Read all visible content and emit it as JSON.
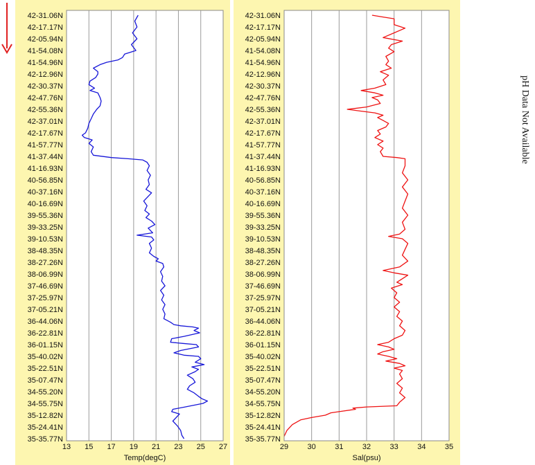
{
  "colors": {
    "panel_bg": "#fdf6b0",
    "plot_bg": "#ffffff",
    "grid": "#9a9a9a",
    "temp_line": "#1515d8",
    "sal_line": "#ee1111",
    "arrow": "#e02020"
  },
  "icons": {
    "direction": "arrow-down-icon"
  },
  "side_note": "pH Data Not Available",
  "chart_data": [
    {
      "type": "line",
      "orientation": "vertical-profile",
      "xlabel": "Temp(degC)",
      "ylabel": "",
      "xlim": [
        13,
        27
      ],
      "xticks": [
        13,
        15,
        17,
        19,
        21,
        23,
        25,
        27
      ],
      "grid": true,
      "y_tick_labels": [
        "42-31.06N",
        "42-17.17N",
        "42-05.94N",
        "41-54.08N",
        "41-54.96N",
        "42-12.96N",
        "42-30.37N",
        "42-47.76N",
        "42-55.36N",
        "42-37.01N",
        "42-17.67N",
        "41-57.77N",
        "41-37.44N",
        "41-16.93N",
        "40-56.85N",
        "40-37.16N",
        "40-16.69N",
        "39-55.36N",
        "39-33.25N",
        "39-10.53N",
        "38-48.35N",
        "38-27.26N",
        "38-06.99N",
        "37-46.69N",
        "37-25.97N",
        "37-05.21N",
        "36-44.06N",
        "36-22.81N",
        "36-01.15N",
        "35-40.02N",
        "35-22.51N",
        "35-07.47N",
        "34-55.20N",
        "34-55.75N",
        "35-12.82N",
        "35-24.41N",
        "35-35.77N"
      ],
      "series": [
        {
          "color": "#1515d8",
          "points": [
            [
              19.4,
              0
            ],
            [
              19.1,
              0.5
            ],
            [
              19.3,
              1
            ],
            [
              18.9,
              1.5
            ],
            [
              19.3,
              2
            ],
            [
              18.8,
              2.5
            ],
            [
              19.2,
              3
            ],
            [
              18.2,
              3.3
            ],
            [
              18.0,
              3.6
            ],
            [
              17.6,
              3.8
            ],
            [
              16.6,
              4
            ],
            [
              16.0,
              4.2
            ],
            [
              15.4,
              4.5
            ],
            [
              15.8,
              4.8
            ],
            [
              15.8,
              5
            ],
            [
              15.6,
              5.3
            ],
            [
              15.1,
              5.6
            ],
            [
              15.0,
              5.9
            ],
            [
              15.5,
              6.2
            ],
            [
              15.1,
              6.4
            ],
            [
              15.8,
              6.6
            ],
            [
              16.0,
              7
            ],
            [
              16.1,
              7.3
            ],
            [
              16.0,
              7.7
            ],
            [
              15.7,
              8
            ],
            [
              15.4,
              8.4
            ],
            [
              15.2,
              8.8
            ],
            [
              15.0,
              9.2
            ],
            [
              14.9,
              9.6
            ],
            [
              14.7,
              10
            ],
            [
              14.4,
              10.2
            ],
            [
              14.6,
              10.4
            ],
            [
              15.3,
              10.6
            ],
            [
              15.0,
              10.9
            ],
            [
              15.4,
              11.2
            ],
            [
              15.2,
              11.6
            ],
            [
              15.4,
              11.9
            ],
            [
              17.0,
              12.1
            ],
            [
              18.5,
              12.2
            ],
            [
              19.8,
              12.3
            ],
            [
              20.2,
              12.5
            ],
            [
              20.4,
              12.8
            ],
            [
              20.2,
              13.2
            ],
            [
              20.5,
              13.6
            ],
            [
              20.3,
              14.0
            ],
            [
              20.4,
              14.4
            ],
            [
              20.1,
              14.8
            ],
            [
              20.6,
              15.1
            ],
            [
              20.3,
              15.4
            ],
            [
              19.9,
              15.8
            ],
            [
              20.2,
              16.2
            ],
            [
              20.0,
              16.6
            ],
            [
              20.4,
              16.9
            ],
            [
              20.1,
              17.2
            ],
            [
              20.6,
              17.5
            ],
            [
              20.9,
              17.8
            ],
            [
              20.3,
              18.1
            ],
            [
              20.7,
              18.5
            ],
            [
              19.3,
              18.7
            ],
            [
              20.6,
              18.85
            ],
            [
              20.8,
              19.1
            ],
            [
              20.4,
              19.4
            ],
            [
              20.6,
              19.8
            ],
            [
              20.4,
              20.2
            ],
            [
              20.8,
              20.5
            ],
            [
              21.2,
              20.7
            ],
            [
              21.0,
              20.9
            ],
            [
              21.6,
              21.1
            ],
            [
              21.7,
              21.4
            ],
            [
              21.4,
              21.8
            ],
            [
              21.6,
              22.2
            ],
            [
              21.5,
              22.6
            ],
            [
              21.8,
              23
            ],
            [
              21.4,
              23.4
            ],
            [
              21.7,
              23.8
            ],
            [
              21.5,
              24.2
            ],
            [
              21.8,
              24.6
            ],
            [
              21.6,
              25
            ],
            [
              21.8,
              25.4
            ],
            [
              21.7,
              25.8
            ],
            [
              22.3,
              26.1
            ],
            [
              22.6,
              26.3
            ],
            [
              23.2,
              26.4
            ],
            [
              24.3,
              26.5
            ],
            [
              24.8,
              26.6
            ],
            [
              24.4,
              26.8
            ],
            [
              24.9,
              27.0
            ],
            [
              23.5,
              27.3
            ],
            [
              22.4,
              27.5
            ],
            [
              22.3,
              27.8
            ],
            [
              23.4,
              27.9
            ],
            [
              24.6,
              28
            ],
            [
              24.8,
              28.2
            ],
            [
              23.2,
              28.5
            ],
            [
              22.6,
              28.7
            ],
            [
              23.5,
              28.9
            ],
            [
              24.8,
              29
            ],
            [
              25.0,
              29.2
            ],
            [
              24.5,
              29.5
            ],
            [
              25.3,
              29.7
            ],
            [
              24.2,
              29.9
            ],
            [
              24.8,
              30.1
            ],
            [
              24.5,
              30.3
            ],
            [
              23.8,
              30.6
            ],
            [
              24.3,
              30.9
            ],
            [
              24.5,
              31.2
            ],
            [
              24.0,
              31.5
            ],
            [
              23.8,
              31.8
            ],
            [
              24.4,
              32.1
            ],
            [
              24.8,
              32.4
            ],
            [
              25.1,
              32.6
            ],
            [
              25.6,
              32.8
            ],
            [
              25.2,
              33.0
            ],
            [
              23.6,
              33.3
            ],
            [
              22.5,
              33.5
            ],
            [
              22.4,
              33.7
            ],
            [
              23.1,
              33.9
            ],
            [
              22.8,
              34.2
            ],
            [
              22.5,
              34.5
            ],
            [
              22.9,
              34.9
            ],
            [
              23.2,
              35.3
            ],
            [
              23.3,
              35.7
            ],
            [
              23.5,
              36
            ]
          ]
        }
      ]
    },
    {
      "type": "line",
      "orientation": "vertical-profile",
      "xlabel": "Sal(psu)",
      "ylabel": "",
      "xlim": [
        29,
        35
      ],
      "xticks": [
        29,
        30,
        31,
        32,
        33,
        34,
        35
      ],
      "grid": true,
      "y_tick_labels": [
        "42-31.06N",
        "42-17.17N",
        "42-05.94N",
        "41-54.08N",
        "41-54.96N",
        "42-12.96N",
        "42-30.37N",
        "42-47.76N",
        "42-55.36N",
        "42-37.01N",
        "42-17.67N",
        "41-57.77N",
        "41-37.44N",
        "41-16.93N",
        "40-56.85N",
        "40-37.16N",
        "40-16.69N",
        "39-55.36N",
        "39-33.25N",
        "39-10.53N",
        "38-48.35N",
        "38-27.26N",
        "38-06.99N",
        "37-46.69N",
        "37-25.97N",
        "37-05.21N",
        "36-44.06N",
        "36-22.81N",
        "36-01.15N",
        "35-40.02N",
        "35-22.51N",
        "35-07.47N",
        "34-55.20N",
        "34-55.75N",
        "35-12.82N",
        "35-24.41N",
        "35-35.77N"
      ],
      "series": [
        {
          "color": "#ee1111",
          "points": [
            [
              32.2,
              0
            ],
            [
              32.6,
              0.15
            ],
            [
              33.0,
              0.3
            ],
            [
              33.0,
              0.8
            ],
            [
              33.4,
              1.1
            ],
            [
              33.0,
              1.5
            ],
            [
              32.6,
              1.9
            ],
            [
              33.3,
              2.2
            ],
            [
              32.9,
              2.5
            ],
            [
              32.8,
              2.8
            ],
            [
              33.0,
              3.1
            ],
            [
              32.7,
              3.5
            ],
            [
              32.8,
              3.9
            ],
            [
              32.7,
              4.2
            ],
            [
              32.9,
              4.5
            ],
            [
              32.5,
              4.8
            ],
            [
              32.8,
              5.1
            ],
            [
              32.6,
              5.5
            ],
            [
              32.7,
              5.9
            ],
            [
              32.3,
              6.2
            ],
            [
              31.8,
              6.4
            ],
            [
              32.3,
              6.6
            ],
            [
              32.6,
              6.8
            ],
            [
              32.2,
              7.0
            ],
            [
              32.4,
              7.2
            ],
            [
              32.5,
              7.5
            ],
            [
              32.0,
              7.8
            ],
            [
              31.3,
              8.0
            ],
            [
              31.8,
              8.15
            ],
            [
              32.3,
              8.3
            ],
            [
              32.6,
              8.5
            ],
            [
              32.4,
              8.7
            ],
            [
              32.6,
              8.95
            ],
            [
              32.8,
              9.2
            ],
            [
              32.7,
              9.5
            ],
            [
              32.4,
              9.8
            ],
            [
              32.5,
              10.1
            ],
            [
              32.3,
              10.4
            ],
            [
              32.6,
              10.7
            ],
            [
              32.4,
              11.0
            ],
            [
              32.6,
              11.3
            ],
            [
              32.5,
              11.6
            ],
            [
              32.6,
              12.0
            ],
            [
              33.1,
              12.1
            ],
            [
              33.4,
              12.2
            ],
            [
              33.4,
              12.8
            ],
            [
              33.3,
              13.4
            ],
            [
              33.5,
              14.0
            ],
            [
              33.3,
              14.6
            ],
            [
              33.5,
              15.2
            ],
            [
              33.4,
              15.8
            ],
            [
              33.3,
              16.4
            ],
            [
              33.5,
              17.0
            ],
            [
              33.3,
              17.6
            ],
            [
              33.4,
              18.2
            ],
            [
              33.2,
              18.6
            ],
            [
              32.8,
              18.8
            ],
            [
              33.3,
              19.0
            ],
            [
              33.5,
              19.4
            ],
            [
              33.4,
              19.9
            ],
            [
              33.3,
              20.4
            ],
            [
              33.5,
              20.9
            ],
            [
              33.2,
              21.4
            ],
            [
              32.6,
              21.7
            ],
            [
              33.0,
              21.9
            ],
            [
              33.5,
              22.1
            ],
            [
              33.3,
              22.4
            ],
            [
              33.1,
              22.7
            ],
            [
              33.3,
              22.9
            ],
            [
              32.9,
              23.2
            ],
            [
              33.1,
              23.6
            ],
            [
              33.0,
              24.0
            ],
            [
              33.2,
              24.4
            ],
            [
              33.0,
              24.8
            ],
            [
              33.2,
              25.2
            ],
            [
              33.1,
              25.6
            ],
            [
              33.3,
              26.0
            ],
            [
              33.2,
              26.4
            ],
            [
              33.4,
              26.8
            ],
            [
              33.3,
              27.2
            ],
            [
              33.0,
              27.5
            ],
            [
              32.8,
              27.8
            ],
            [
              32.4,
              28.0
            ],
            [
              32.8,
              28.2
            ],
            [
              33.0,
              28.4
            ],
            [
              32.6,
              28.6
            ],
            [
              32.4,
              28.8
            ],
            [
              32.8,
              29.0
            ],
            [
              33.1,
              29.2
            ],
            [
              32.7,
              29.4
            ],
            [
              33.2,
              29.6
            ],
            [
              33.4,
              29.8
            ],
            [
              33.0,
              30.0
            ],
            [
              33.3,
              30.2
            ],
            [
              33.2,
              30.5
            ],
            [
              33.3,
              30.9
            ],
            [
              33.1,
              31.3
            ],
            [
              33.3,
              31.7
            ],
            [
              33.2,
              32.1
            ],
            [
              33.4,
              32.5
            ],
            [
              33.2,
              32.9
            ],
            [
              33.1,
              33.2
            ],
            [
              32.0,
              33.3
            ],
            [
              31.5,
              33.4
            ],
            [
              31.6,
              33.5
            ],
            [
              31.0,
              33.7
            ],
            [
              30.7,
              33.8
            ],
            [
              30.5,
              34.0
            ],
            [
              30.0,
              34.2
            ],
            [
              29.6,
              34.4
            ],
            [
              29.3,
              34.8
            ],
            [
              29.1,
              35.3
            ],
            [
              29.0,
              35.8
            ]
          ]
        }
      ]
    }
  ]
}
